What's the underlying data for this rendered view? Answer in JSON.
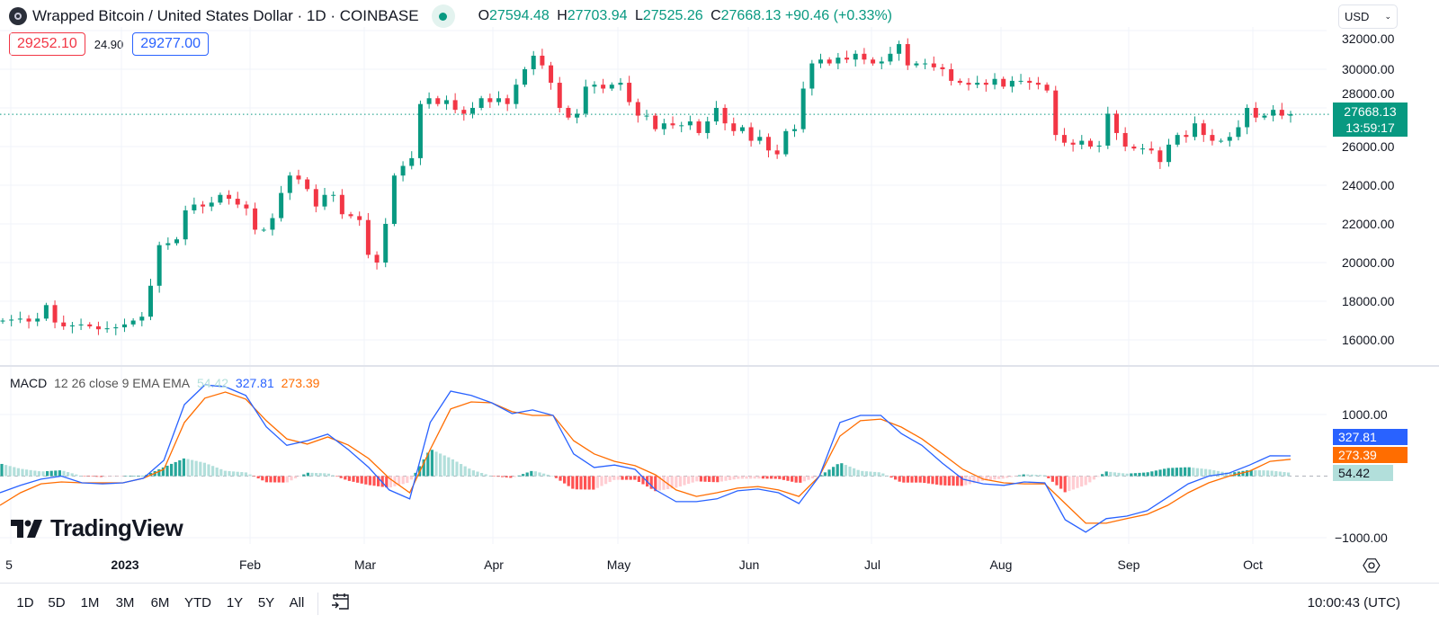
{
  "header": {
    "title": "Wrapped Bitcoin / United States Dollar · 1D · COINBASE",
    "ohlc": {
      "o_label": "O",
      "o": "27594.48",
      "h_label": "H",
      "h": "27703.94",
      "l_label": "L",
      "l": "27525.26",
      "c_label": "C",
      "c": "27668.13",
      "change": "+90.46 (+0.33%)"
    },
    "sell_price": "29252.10",
    "spread": "24.90",
    "buy_price": "29277.00",
    "currency": "USD"
  },
  "price_axis": {
    "ticks": [
      "32000.00",
      "30000.00",
      "28000.00",
      "26000.00",
      "24000.00",
      "22000.00",
      "20000.00",
      "18000.00",
      "16000.00"
    ],
    "last_price": "27668.13",
    "countdown": "13:59:17"
  },
  "macd": {
    "legend_name": "MACD",
    "legend_params": "12 26 close 9 EMA EMA",
    "hist_value": "54.42",
    "macd_value": "327.81",
    "signal_value": "273.39",
    "ticks": [
      "1000.00",
      "−1000.00"
    ]
  },
  "time_axis": [
    "5",
    "2023",
    "Feb",
    "Mar",
    "Apr",
    "May",
    "Jun",
    "Jul",
    "Aug",
    "Sep",
    "Oct"
  ],
  "brand": "TradingView",
  "toolbar": {
    "ranges": [
      "1D",
      "5D",
      "1M",
      "3M",
      "6M",
      "YTD",
      "1Y",
      "5Y",
      "All"
    ],
    "clock": "10:00:43 (UTC)"
  },
  "colors": {
    "up": "#089981",
    "down": "#f23645",
    "macd": "#2962ff",
    "signal": "#ff6d00",
    "hist_up_strong": "#26a69a",
    "hist_up_weak": "#b2dfdb",
    "hist_down_strong": "#ff5252",
    "hist_down_weak": "#ffcdd2"
  },
  "chart_data": {
    "type": "candlestick",
    "symbol": "WBTC/USD",
    "interval": "1D",
    "x_range": [
      "2022-12-03",
      "2023-10-11"
    ],
    "ylim": [
      15000,
      32500
    ],
    "closes": [
      17000,
      17050,
      17100,
      16950,
      17100,
      17800,
      16900,
      16700,
      16750,
      16800,
      16700,
      16550,
      16600,
      16650,
      16800,
      17000,
      17200,
      18800,
      20900,
      21000,
      21200,
      22700,
      23000,
      22900,
      23100,
      23500,
      23300,
      23000,
      22800,
      21700,
      21700,
      22300,
      23600,
      24500,
      24300,
      23800,
      22900,
      23500,
      23500,
      22500,
      22400,
      22200,
      20400,
      20000,
      22000,
      24500,
      25000,
      25400,
      28200,
      28500,
      28200,
      28400,
      27900,
      27700,
      28000,
      28500,
      28300,
      28500,
      28200,
      29200,
      30000,
      30700,
      30200,
      29300,
      28000,
      27500,
      27700,
      29100,
      29200,
      29000,
      29200,
      29300,
      28300,
      27600,
      27600,
      26900,
      27200,
      27100,
      27100,
      27300,
      26700,
      27300,
      28000,
      27200,
      26800,
      27000,
      26300,
      26500,
      25800,
      25600,
      26800,
      26900,
      29000,
      30300,
      30500,
      30300,
      30600,
      30500,
      30800,
      30500,
      30300,
      30400,
      30800,
      31300,
      30200,
      30300,
      30300,
      30100,
      30000,
      29400,
      29300,
      29200,
      29300,
      29200,
      29500,
      29100,
      29400,
      29400,
      29300,
      29200,
      28900,
      26600,
      26200,
      26100,
      26300,
      26000,
      26050,
      27700,
      26700,
      26000,
      25900,
      25900,
      25800,
      25200,
      26100,
      26600,
      26500,
      27200,
      26600,
      26300,
      26300,
      26500,
      27000,
      28000,
      27500,
      27600,
      27900,
      27600,
      27668.13
    ],
    "macd_ylim": [
      -1400,
      1500
    ],
    "macd_line": [
      -270,
      -150,
      -50,
      0,
      -110,
      -125,
      -110,
      -35,
      255,
      1160,
      1480,
      1450,
      1310,
      800,
      500,
      575,
      680,
      430,
      140,
      -225,
      -370,
      870,
      1380,
      1310,
      1190,
      1015,
      1075,
      985,
      360,
      140,
      180,
      110,
      -225,
      -415,
      -415,
      -370,
      -240,
      -210,
      -270,
      -445,
      0,
      870,
      985,
      985,
      690,
      500,
      210,
      -50,
      -125,
      -150,
      -95,
      -110,
      -710,
      -910,
      -690,
      -650,
      -560,
      -345,
      -125,
      0,
      50,
      180,
      330,
      327.81
    ],
    "signal_line": [
      -475,
      -270,
      -125,
      -95,
      -110,
      -110,
      -110,
      -35,
      110,
      870,
      1265,
      1365,
      1250,
      900,
      605,
      520,
      635,
      505,
      285,
      -35,
      -270,
      430,
      1090,
      1205,
      1190,
      1045,
      985,
      985,
      575,
      360,
      240,
      170,
      20,
      -225,
      -330,
      -270,
      -195,
      -170,
      -225,
      -330,
      0,
      650,
      900,
      925,
      795,
      605,
      360,
      110,
      -50,
      -110,
      -125,
      -125,
      -445,
      -765,
      -765,
      -690,
      -620,
      -475,
      -270,
      -110,
      0,
      80,
      240,
      273.39
    ],
    "histogram": "macd_line - signal_line"
  }
}
